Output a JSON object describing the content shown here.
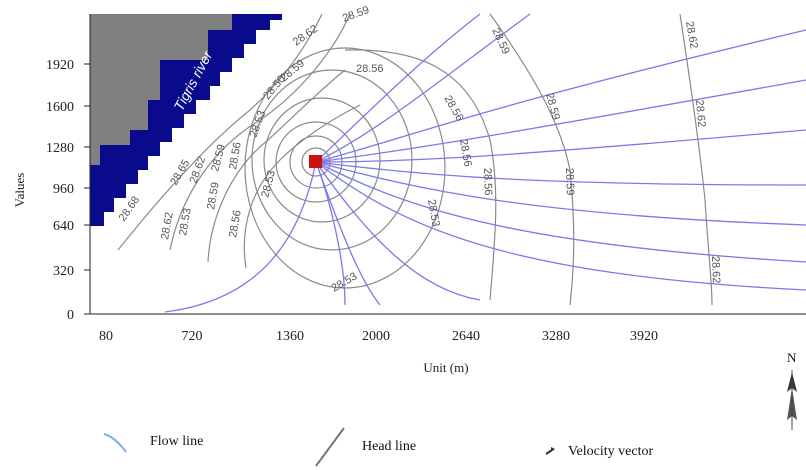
{
  "axes": {
    "xlabel": "Unit (m)",
    "ylabel": "Values",
    "x_ticks": [
      "80",
      "720",
      "1360",
      "2000",
      "2640",
      "3280",
      "3920"
    ],
    "y_ticks": [
      "0",
      "320",
      "640",
      "960",
      "1280",
      "1600",
      "1920"
    ]
  },
  "river_label": "Tigris river",
  "head_labels": [
    "28.59",
    "28.62",
    "28.59",
    "28.56",
    "28.56",
    "28.59",
    "28.62",
    "28.62",
    "28.59",
    "28.56",
    "28.53",
    "28.50",
    "28.65",
    "28.68",
    "28.62",
    "28.59",
    "28.56",
    "28.53",
    "28.53",
    "28.56",
    "28.59",
    "28.62",
    "28.53",
    "28.53",
    "28.56",
    "28.59",
    "28.62"
  ],
  "north_label": "N",
  "legend": {
    "flow_line": "Flow line",
    "head_line": "Head line",
    "velocity_vector": "Velocity vector"
  },
  "colors": {
    "river": "#0a0a8c",
    "land": "#808080",
    "well": "#cc1111",
    "flow_line": "#7a7ae8",
    "head_line": "#8a8a8a"
  }
}
